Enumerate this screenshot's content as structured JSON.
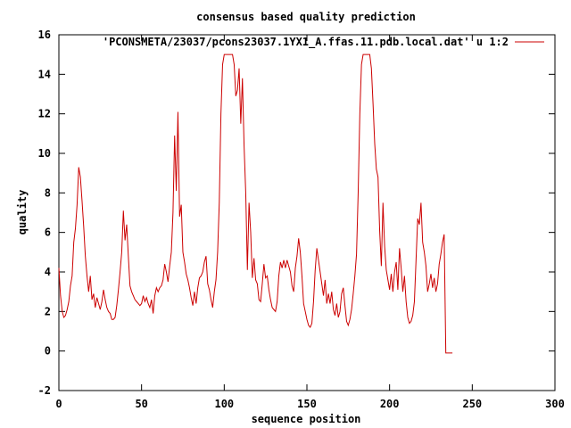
{
  "chart_data": {
    "type": "line",
    "title": "consensus based quality prediction",
    "xlabel": "sequence position",
    "ylabel": "quality",
    "xlim": [
      0,
      300
    ],
    "ylim": [
      -2,
      16
    ],
    "xticks": [
      0,
      50,
      100,
      150,
      200,
      250,
      300
    ],
    "yticks": [
      -2,
      0,
      2,
      4,
      6,
      8,
      10,
      12,
      14,
      16
    ],
    "grid": false,
    "legend_position": "top-right",
    "series": [
      {
        "name": "'PCONSMETA/23037/pcons23037.1YX1_A.ffas.11.pdb.local.dat' u 1:2",
        "color": "#cc0000",
        "points": [
          [
            0,
            4.2
          ],
          [
            1,
            2.8
          ],
          [
            2,
            2.0
          ],
          [
            3,
            1.7
          ],
          [
            4,
            1.8
          ],
          [
            5,
            2.1
          ],
          [
            6,
            2.5
          ],
          [
            7,
            3.3
          ],
          [
            8,
            3.8
          ],
          [
            9,
            5.5
          ],
          [
            10,
            6.2
          ],
          [
            11,
            7.4
          ],
          [
            12,
            9.3
          ],
          [
            13,
            8.8
          ],
          [
            14,
            7.6
          ],
          [
            15,
            6.3
          ],
          [
            16,
            4.8
          ],
          [
            17,
            3.8
          ],
          [
            18,
            3.0
          ],
          [
            19,
            3.8
          ],
          [
            20,
            2.6
          ],
          [
            21,
            2.9
          ],
          [
            22,
            2.2
          ],
          [
            23,
            2.7
          ],
          [
            24,
            2.4
          ],
          [
            25,
            2.1
          ],
          [
            26,
            2.5
          ],
          [
            27,
            3.1
          ],
          [
            28,
            2.6
          ],
          [
            29,
            2.2
          ],
          [
            30,
            2.0
          ],
          [
            31,
            1.9
          ],
          [
            32,
            1.6
          ],
          [
            33,
            1.6
          ],
          [
            34,
            1.7
          ],
          [
            35,
            2.3
          ],
          [
            36,
            3.1
          ],
          [
            37,
            4.0
          ],
          [
            38,
            5.0
          ],
          [
            39,
            7.1
          ],
          [
            40,
            5.6
          ],
          [
            41,
            6.4
          ],
          [
            42,
            4.8
          ],
          [
            43,
            3.3
          ],
          [
            44,
            3.0
          ],
          [
            45,
            2.8
          ],
          [
            46,
            2.6
          ],
          [
            47,
            2.5
          ],
          [
            48,
            2.4
          ],
          [
            49,
            2.3
          ],
          [
            50,
            2.4
          ],
          [
            51,
            2.8
          ],
          [
            52,
            2.5
          ],
          [
            53,
            2.7
          ],
          [
            54,
            2.4
          ],
          [
            55,
            2.2
          ],
          [
            56,
            2.6
          ],
          [
            57,
            1.9
          ],
          [
            58,
            2.8
          ],
          [
            59,
            3.2
          ],
          [
            60,
            3.0
          ],
          [
            61,
            3.2
          ],
          [
            62,
            3.3
          ],
          [
            63,
            3.6
          ],
          [
            64,
            4.4
          ],
          [
            65,
            4.0
          ],
          [
            66,
            3.5
          ],
          [
            67,
            4.3
          ],
          [
            68,
            5.0
          ],
          [
            69,
            7.0
          ],
          [
            70,
            10.9
          ],
          [
            71,
            8.1
          ],
          [
            72,
            12.1
          ],
          [
            73,
            6.8
          ],
          [
            74,
            7.4
          ],
          [
            75,
            5.0
          ],
          [
            76,
            4.5
          ],
          [
            77,
            3.9
          ],
          [
            78,
            3.6
          ],
          [
            79,
            3.2
          ],
          [
            80,
            2.7
          ],
          [
            81,
            2.3
          ],
          [
            82,
            3.0
          ],
          [
            83,
            2.4
          ],
          [
            84,
            3.2
          ],
          [
            85,
            3.7
          ],
          [
            86,
            3.8
          ],
          [
            87,
            4.0
          ],
          [
            88,
            4.5
          ],
          [
            89,
            4.8
          ],
          [
            90,
            3.4
          ],
          [
            91,
            3.1
          ],
          [
            92,
            2.6
          ],
          [
            93,
            2.2
          ],
          [
            94,
            3.0
          ],
          [
            95,
            3.6
          ],
          [
            96,
            5.0
          ],
          [
            97,
            7.5
          ],
          [
            98,
            12.0
          ],
          [
            99,
            14.5
          ],
          [
            100,
            15.0
          ],
          [
            101,
            15.0
          ],
          [
            102,
            15.0
          ],
          [
            103,
            15.0
          ],
          [
            104,
            15.0
          ],
          [
            105,
            15.0
          ],
          [
            106,
            14.5
          ],
          [
            107,
            12.9
          ],
          [
            108,
            13.2
          ],
          [
            109,
            14.3
          ],
          [
            110,
            11.5
          ],
          [
            111,
            13.8
          ],
          [
            112,
            10.4
          ],
          [
            113,
            8.0
          ],
          [
            114,
            4.1
          ],
          [
            115,
            7.5
          ],
          [
            116,
            6.0
          ],
          [
            117,
            3.7
          ],
          [
            118,
            4.7
          ],
          [
            119,
            3.6
          ],
          [
            120,
            3.4
          ],
          [
            121,
            2.6
          ],
          [
            122,
            2.5
          ],
          [
            123,
            3.4
          ],
          [
            124,
            4.4
          ],
          [
            125,
            3.7
          ],
          [
            126,
            3.8
          ],
          [
            127,
            3.1
          ],
          [
            128,
            2.6
          ],
          [
            129,
            2.2
          ],
          [
            130,
            2.1
          ],
          [
            131,
            2.0
          ],
          [
            132,
            2.5
          ],
          [
            133,
            3.8
          ],
          [
            134,
            4.5
          ],
          [
            135,
            4.2
          ],
          [
            136,
            4.6
          ],
          [
            137,
            4.2
          ],
          [
            138,
            4.6
          ],
          [
            139,
            4.3
          ],
          [
            140,
            4.0
          ],
          [
            141,
            3.3
          ],
          [
            142,
            3.0
          ],
          [
            143,
            4.2
          ],
          [
            144,
            4.8
          ],
          [
            145,
            5.7
          ],
          [
            146,
            5.0
          ],
          [
            147,
            3.8
          ],
          [
            148,
            2.4
          ],
          [
            149,
            2.0
          ],
          [
            150,
            1.6
          ],
          [
            151,
            1.3
          ],
          [
            152,
            1.2
          ],
          [
            153,
            1.4
          ],
          [
            154,
            2.5
          ],
          [
            155,
            4.1
          ],
          [
            156,
            5.2
          ],
          [
            157,
            4.6
          ],
          [
            158,
            4.0
          ],
          [
            159,
            3.4
          ],
          [
            160,
            2.8
          ],
          [
            161,
            3.6
          ],
          [
            162,
            2.4
          ],
          [
            163,
            2.9
          ],
          [
            164,
            2.4
          ],
          [
            165,
            3.0
          ],
          [
            166,
            2.1
          ],
          [
            167,
            1.8
          ],
          [
            168,
            2.4
          ],
          [
            169,
            1.7
          ],
          [
            170,
            2.0
          ],
          [
            171,
            2.9
          ],
          [
            172,
            3.2
          ],
          [
            173,
            2.3
          ],
          [
            174,
            1.5
          ],
          [
            175,
            1.3
          ],
          [
            176,
            1.6
          ],
          [
            177,
            2.1
          ],
          [
            178,
            2.9
          ],
          [
            179,
            3.8
          ],
          [
            180,
            4.9
          ],
          [
            181,
            8.0
          ],
          [
            182,
            12.0
          ],
          [
            183,
            14.5
          ],
          [
            184,
            15.0
          ],
          [
            185,
            15.0
          ],
          [
            186,
            15.0
          ],
          [
            187,
            15.0
          ],
          [
            188,
            15.0
          ],
          [
            189,
            14.3
          ],
          [
            190,
            12.5
          ],
          [
            191,
            10.5
          ],
          [
            192,
            9.2
          ],
          [
            193,
            8.8
          ],
          [
            194,
            6.1
          ],
          [
            195,
            4.3
          ],
          [
            196,
            7.5
          ],
          [
            197,
            5.3
          ],
          [
            198,
            4.1
          ],
          [
            199,
            3.6
          ],
          [
            200,
            3.1
          ],
          [
            201,
            3.9
          ],
          [
            202,
            3.0
          ],
          [
            203,
            4.0
          ],
          [
            204,
            4.5
          ],
          [
            205,
            3.1
          ],
          [
            206,
            5.2
          ],
          [
            207,
            4.2
          ],
          [
            208,
            3.0
          ],
          [
            209,
            3.8
          ],
          [
            210,
            2.5
          ],
          [
            211,
            1.7
          ],
          [
            212,
            1.4
          ],
          [
            213,
            1.5
          ],
          [
            214,
            1.8
          ],
          [
            215,
            2.5
          ],
          [
            216,
            4.6
          ],
          [
            217,
            6.7
          ],
          [
            218,
            6.4
          ],
          [
            219,
            7.5
          ],
          [
            220,
            5.5
          ],
          [
            221,
            5.0
          ],
          [
            222,
            4.3
          ],
          [
            223,
            3.0
          ],
          [
            224,
            3.4
          ],
          [
            225,
            3.9
          ],
          [
            226,
            3.2
          ],
          [
            227,
            3.7
          ],
          [
            228,
            3.0
          ],
          [
            229,
            3.4
          ],
          [
            230,
            4.4
          ],
          [
            231,
            4.9
          ],
          [
            232,
            5.5
          ],
          [
            233,
            5.9
          ],
          [
            234,
            -0.1
          ],
          [
            235,
            -0.1
          ],
          [
            236,
            -0.1
          ],
          [
            237,
            -0.1
          ],
          [
            238,
            -0.1
          ]
        ]
      }
    ]
  }
}
